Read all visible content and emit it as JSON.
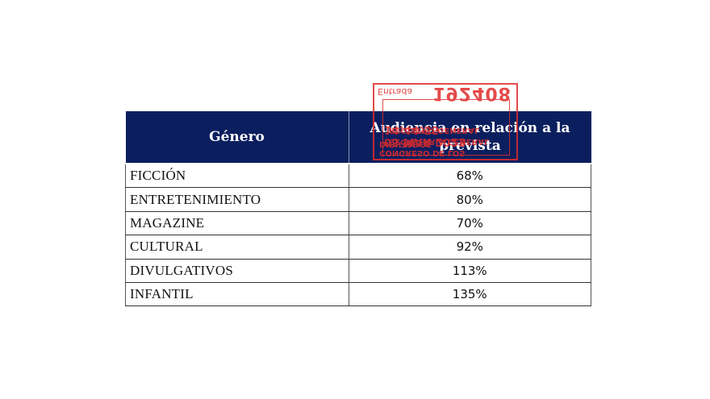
{
  "table": {
    "headers": [
      "Género",
      "Audiencia en relación a la prevista"
    ],
    "rows": [
      {
        "genre": "FICCIÓN",
        "value": "68%"
      },
      {
        "genre": "ENTRETENIMIENTO",
        "value": "80%"
      },
      {
        "genre": "MAGAZINE",
        "value": "70%"
      },
      {
        "genre": "CULTURAL",
        "value": "92%"
      },
      {
        "genre": "DIVULGATIVOS",
        "value": "113%"
      },
      {
        "genre": "INFANTIL",
        "value": "135%"
      }
    ],
    "header_color": "#0b1f5e"
  },
  "stamp": {
    "label": "Entrada",
    "number": "192408",
    "date": "05 MAR 2022 14:44:55",
    "line3": "REGISTRO GENERAL",
    "line4": "SECRETARÍA GENERAL",
    "line5": "CONGRESO DE LOS DIPUTADOS",
    "color": "#e02b2b"
  }
}
